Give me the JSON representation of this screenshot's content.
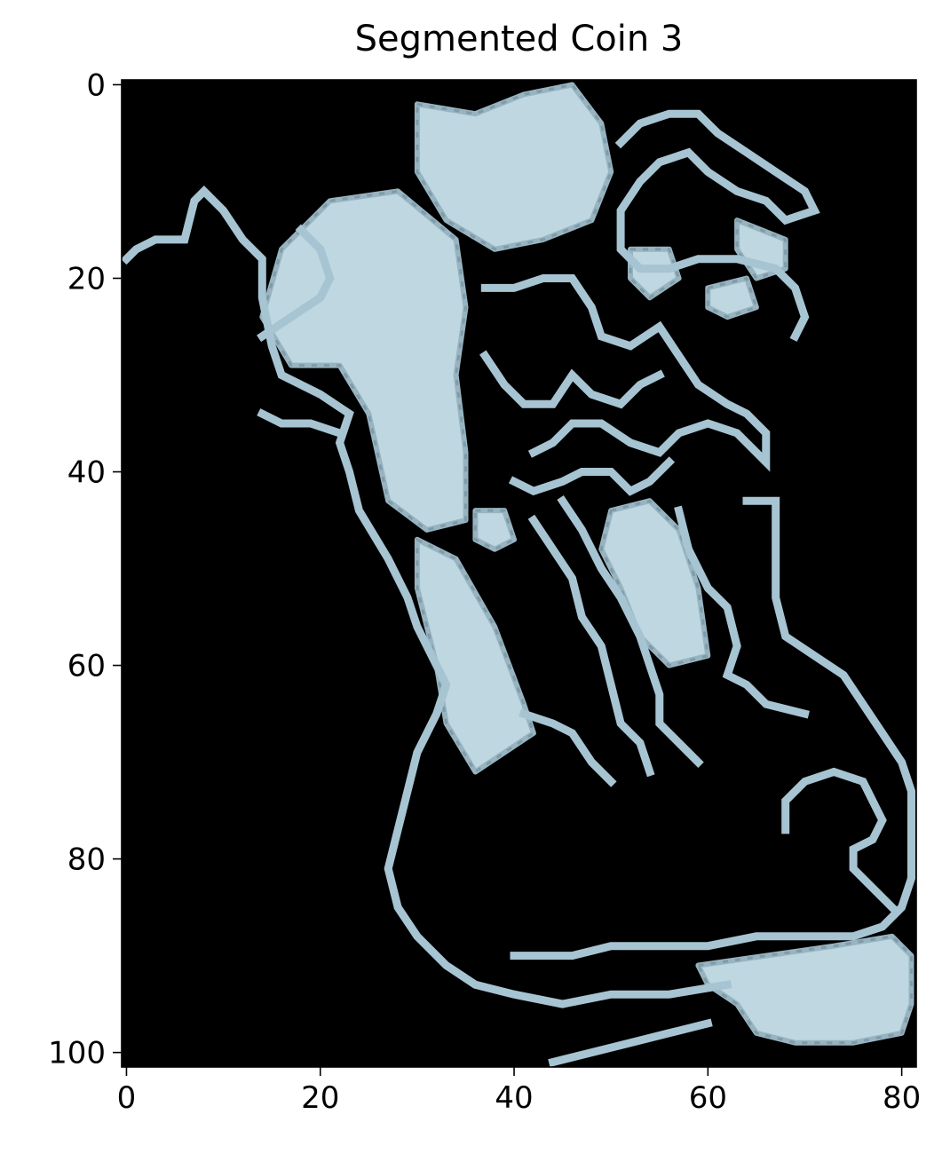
{
  "chart_data": {
    "type": "heatmap",
    "title": "Segmented Coin 3",
    "xlabel": "",
    "ylabel": "",
    "xlim": [
      -0.5,
      81.5
    ],
    "ylim": [
      101.5,
      -0.5
    ],
    "x_ticks": [
      "0",
      "20",
      "40",
      "60",
      "80"
    ],
    "y_ticks": [
      "0",
      "20",
      "40",
      "60",
      "80",
      "100"
    ],
    "x_tick_values": [
      0,
      20,
      40,
      60,
      80
    ],
    "y_tick_values": [
      0,
      20,
      40,
      60,
      80,
      100
    ],
    "image_size": {
      "cols": 82,
      "rows": 102
    },
    "grid": false,
    "background": "#000000",
    "colors": {
      "bright": "#cfeaf4",
      "mid": "#a7c4d2",
      "dark": "#6b8a9a"
    },
    "regions": [
      {
        "name": "top-plate",
        "kind": "filled",
        "points": [
          [
            30,
            2
          ],
          [
            36,
            3
          ],
          [
            41,
            1
          ],
          [
            46,
            0
          ],
          [
            49,
            4
          ],
          [
            50,
            9
          ],
          [
            48,
            14
          ],
          [
            43,
            16
          ],
          [
            38,
            17
          ],
          [
            33,
            14
          ],
          [
            30,
            9
          ]
        ]
      },
      {
        "name": "left-blob",
        "kind": "filled",
        "points": [
          [
            21,
            12
          ],
          [
            28,
            11
          ],
          [
            34,
            16
          ],
          [
            35,
            23
          ],
          [
            34,
            30
          ],
          [
            35,
            38
          ],
          [
            35,
            45
          ],
          [
            31,
            46
          ],
          [
            27,
            43
          ],
          [
            25,
            34
          ],
          [
            22,
            29
          ],
          [
            17,
            29
          ],
          [
            14,
            24
          ],
          [
            16,
            17
          ]
        ]
      },
      {
        "name": "lower-arm",
        "kind": "filled",
        "points": [
          [
            30,
            47
          ],
          [
            34,
            49
          ],
          [
            38,
            56
          ],
          [
            41,
            64
          ],
          [
            42,
            67
          ],
          [
            39,
            69
          ],
          [
            36,
            71
          ],
          [
            33,
            66
          ],
          [
            32,
            60
          ],
          [
            30,
            52
          ]
        ]
      },
      {
        "name": "mid-right-blob",
        "kind": "filled",
        "points": [
          [
            50,
            44
          ],
          [
            54,
            43
          ],
          [
            57,
            46
          ],
          [
            59,
            52
          ],
          [
            60,
            59
          ],
          [
            56,
            60
          ],
          [
            53,
            57
          ],
          [
            51,
            52
          ],
          [
            49,
            48
          ]
        ]
      },
      {
        "name": "small-blob-a",
        "kind": "filled",
        "points": [
          [
            36,
            44
          ],
          [
            39,
            44
          ],
          [
            40,
            47
          ],
          [
            38,
            48
          ],
          [
            36,
            47
          ]
        ]
      },
      {
        "name": "small-blob-b",
        "kind": "filled",
        "points": [
          [
            52,
            17
          ],
          [
            56,
            17
          ],
          [
            57,
            20
          ],
          [
            54,
            22
          ],
          [
            52,
            20
          ]
        ]
      },
      {
        "name": "small-blob-c",
        "kind": "filled",
        "points": [
          [
            60,
            21
          ],
          [
            64,
            20
          ],
          [
            65,
            23
          ],
          [
            62,
            24
          ],
          [
            60,
            23
          ]
        ]
      },
      {
        "name": "small-blob-d",
        "kind": "filled",
        "points": [
          [
            63,
            14
          ],
          [
            68,
            16
          ],
          [
            68,
            19
          ],
          [
            65,
            20
          ],
          [
            63,
            17
          ]
        ]
      },
      {
        "name": "bottom-right-blob",
        "kind": "filled",
        "points": [
          [
            59,
            91
          ],
          [
            66,
            90
          ],
          [
            73,
            89
          ],
          [
            79,
            88
          ],
          [
            81,
            90
          ],
          [
            81,
            95
          ],
          [
            80,
            98
          ],
          [
            75,
            99
          ],
          [
            69,
            99
          ],
          [
            65,
            98
          ],
          [
            63,
            95
          ],
          [
            60,
            93
          ]
        ]
      },
      {
        "name": "outline-left",
        "kind": "line",
        "points": [
          [
            0,
            18
          ],
          [
            1,
            17
          ],
          [
            3,
            16
          ],
          [
            6,
            16
          ],
          [
            7,
            12
          ],
          [
            8,
            11
          ],
          [
            10,
            13
          ],
          [
            12,
            16
          ],
          [
            14,
            18
          ],
          [
            14,
            22
          ],
          [
            15,
            27
          ],
          [
            16,
            30
          ],
          [
            20,
            32
          ],
          [
            23,
            34
          ],
          [
            22,
            37
          ],
          [
            23,
            40
          ],
          [
            24,
            44
          ],
          [
            27,
            49
          ],
          [
            29,
            53
          ],
          [
            30,
            56
          ],
          [
            32,
            60
          ],
          [
            33,
            62
          ],
          [
            32,
            65
          ],
          [
            30,
            69
          ],
          [
            29,
            73
          ],
          [
            28,
            77
          ],
          [
            27,
            81
          ],
          [
            28,
            85
          ],
          [
            30,
            88
          ],
          [
            33,
            91
          ],
          [
            36,
            93
          ],
          [
            40,
            94
          ],
          [
            45,
            95
          ],
          [
            50,
            94
          ],
          [
            56,
            94
          ],
          [
            62,
            93
          ]
        ]
      },
      {
        "name": "outline-right-lower",
        "kind": "line",
        "points": [
          [
            64,
            43
          ],
          [
            67,
            43
          ],
          [
            67,
            48
          ],
          [
            67,
            53
          ],
          [
            68,
            57
          ],
          [
            71,
            59
          ],
          [
            74,
            61
          ],
          [
            76,
            64
          ],
          [
            78,
            67
          ],
          [
            80,
            70
          ],
          [
            81,
            73
          ],
          [
            81,
            78
          ],
          [
            81,
            82
          ],
          [
            80,
            85
          ],
          [
            78,
            87
          ],
          [
            75,
            88
          ],
          [
            70,
            88
          ],
          [
            65,
            88
          ],
          [
            60,
            89
          ],
          [
            55,
            89
          ],
          [
            50,
            89
          ],
          [
            46,
            90
          ],
          [
            40,
            90
          ]
        ]
      },
      {
        "name": "outline-top-right",
        "kind": "line",
        "points": [
          [
            51,
            6
          ],
          [
            53,
            4
          ],
          [
            56,
            3
          ],
          [
            59,
            3
          ],
          [
            61,
            5
          ],
          [
            64,
            7
          ],
          [
            67,
            9
          ],
          [
            70,
            11
          ],
          [
            71,
            13
          ],
          [
            68,
            14
          ],
          [
            66,
            12
          ],
          [
            63,
            11
          ],
          [
            60,
            9
          ],
          [
            58,
            7
          ],
          [
            55,
            8
          ],
          [
            53,
            10
          ],
          [
            51,
            13
          ],
          [
            51,
            17
          ],
          [
            53,
            19
          ],
          [
            56,
            19
          ],
          [
            59,
            18
          ],
          [
            63,
            18
          ],
          [
            67,
            19
          ],
          [
            69,
            21
          ],
          [
            70,
            24
          ],
          [
            69,
            26
          ]
        ]
      },
      {
        "name": "inner-web",
        "kind": "line",
        "points": [
          [
            37,
            21
          ],
          [
            40,
            21
          ],
          [
            43,
            20
          ],
          [
            46,
            20
          ],
          [
            48,
            23
          ],
          [
            49,
            26
          ],
          [
            52,
            27
          ],
          [
            55,
            25
          ],
          [
            57,
            28
          ],
          [
            59,
            31
          ],
          [
            62,
            33
          ],
          [
            64,
            34
          ],
          [
            66,
            36
          ],
          [
            66,
            39
          ],
          [
            63,
            36
          ],
          [
            60,
            35
          ],
          [
            57,
            36
          ],
          [
            55,
            38
          ],
          [
            52,
            37
          ],
          [
            49,
            35
          ],
          [
            46,
            35
          ],
          [
            44,
            37
          ],
          [
            42,
            38
          ]
        ]
      },
      {
        "name": "inner-web-2",
        "kind": "line",
        "points": [
          [
            37,
            28
          ],
          [
            39,
            31
          ],
          [
            41,
            33
          ],
          [
            44,
            33
          ],
          [
            46,
            30
          ],
          [
            48,
            32
          ],
          [
            51,
            33
          ],
          [
            53,
            31
          ],
          [
            55,
            30
          ]
        ]
      },
      {
        "name": "inner-web-3",
        "kind": "line",
        "points": [
          [
            40,
            41
          ],
          [
            42,
            42
          ],
          [
            45,
            41
          ],
          [
            47,
            40
          ],
          [
            50,
            40
          ],
          [
            52,
            42
          ],
          [
            54,
            41
          ],
          [
            56,
            39
          ]
        ]
      },
      {
        "name": "inner-web-4",
        "kind": "line",
        "points": [
          [
            42,
            45
          ],
          [
            44,
            48
          ],
          [
            46,
            51
          ],
          [
            47,
            55
          ],
          [
            49,
            58
          ],
          [
            50,
            62
          ],
          [
            51,
            66
          ],
          [
            53,
            68
          ],
          [
            54,
            71
          ]
        ]
      },
      {
        "name": "inner-web-5",
        "kind": "line",
        "points": [
          [
            45,
            43
          ],
          [
            47,
            46
          ],
          [
            49,
            50
          ],
          [
            51,
            53
          ],
          [
            53,
            57
          ],
          [
            54,
            60
          ],
          [
            55,
            63
          ],
          [
            55,
            66
          ],
          [
            57,
            68
          ],
          [
            59,
            70
          ]
        ]
      },
      {
        "name": "inner-web-6",
        "kind": "line",
        "points": [
          [
            57,
            44
          ],
          [
            58,
            48
          ],
          [
            60,
            52
          ],
          [
            62,
            54
          ],
          [
            63,
            58
          ],
          [
            62,
            61
          ],
          [
            64,
            62
          ],
          [
            66,
            64
          ],
          [
            70,
            65
          ]
        ]
      },
      {
        "name": "coil-right",
        "kind": "line",
        "points": [
          [
            68,
            77
          ],
          [
            68,
            74
          ],
          [
            70,
            72
          ],
          [
            73,
            71
          ],
          [
            76,
            72
          ],
          [
            77,
            74
          ],
          [
            78,
            76
          ],
          [
            77,
            78
          ],
          [
            75,
            79
          ],
          [
            75,
            81
          ],
          [
            77,
            83
          ],
          [
            79,
            85
          ]
        ]
      },
      {
        "name": "inner-left-loop",
        "kind": "line",
        "points": [
          [
            14,
            26
          ],
          [
            17,
            24
          ],
          [
            20,
            22
          ],
          [
            21,
            20
          ],
          [
            20,
            17
          ],
          [
            18,
            15
          ]
        ]
      },
      {
        "name": "inner-left-strand",
        "kind": "line",
        "points": [
          [
            14,
            34
          ],
          [
            16,
            35
          ],
          [
            19,
            35
          ],
          [
            22,
            36
          ]
        ]
      },
      {
        "name": "lower-strand",
        "kind": "line",
        "points": [
          [
            41,
            65
          ],
          [
            44,
            66
          ],
          [
            46,
            67
          ],
          [
            48,
            70
          ],
          [
            50,
            72
          ]
        ]
      },
      {
        "name": "bottom-strand",
        "kind": "line",
        "points": [
          [
            44,
            101
          ],
          [
            48,
            100
          ],
          [
            52,
            99
          ],
          [
            56,
            98
          ],
          [
            60,
            97
          ]
        ]
      }
    ]
  }
}
